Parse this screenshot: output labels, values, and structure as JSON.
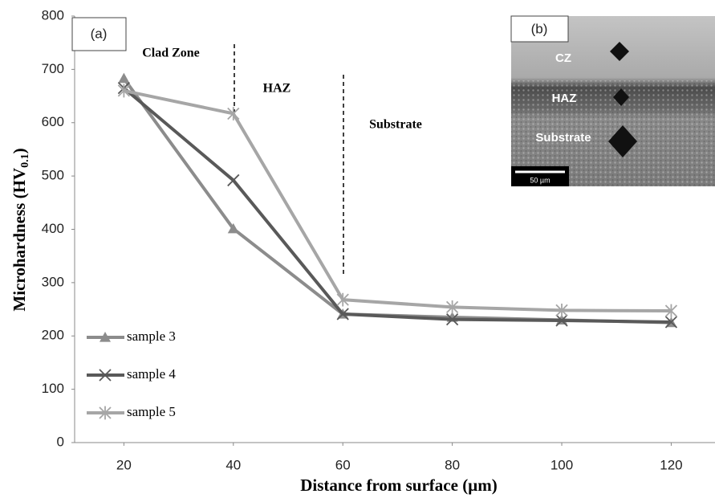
{
  "chart_data": {
    "type": "line",
    "ylabel": [
      "Microhardness (HV",
      "0.1",
      ")"
    ],
    "xlabel": "Distance from surface (µm)",
    "x": [
      20,
      40,
      60,
      80,
      100,
      120
    ],
    "xlim": [
      11,
      128
    ],
    "xticks": [
      20,
      40,
      60,
      80,
      100,
      120
    ],
    "ylim": [
      0,
      800
    ],
    "yticks": [
      0,
      100,
      200,
      300,
      400,
      500,
      600,
      700,
      800
    ],
    "legend": "lower left",
    "series": [
      {
        "name": "sample 3",
        "color": "#8c8c8c",
        "marker": "triangle",
        "values": [
          683,
          401,
          241,
          235,
          230,
          225
        ]
      },
      {
        "name": "sample 4",
        "color": "#595959",
        "marker": "x",
        "values": [
          665,
          492,
          241,
          231,
          229,
          226
        ]
      },
      {
        "name": "sample 5",
        "color": "#a6a6a6",
        "marker": "star",
        "values": [
          660,
          617,
          268,
          254,
          248,
          247
        ]
      }
    ],
    "annotations": {
      "panel_a": "(a)",
      "clad_zone": "Clad Zone",
      "haz": "HAZ",
      "substrate": "Substrate"
    },
    "inset": {
      "panel_b": "(b)",
      "cz": "CZ",
      "haz": "HAZ",
      "substrate": "Substrate",
      "scale_bar": "50 µm"
    }
  }
}
